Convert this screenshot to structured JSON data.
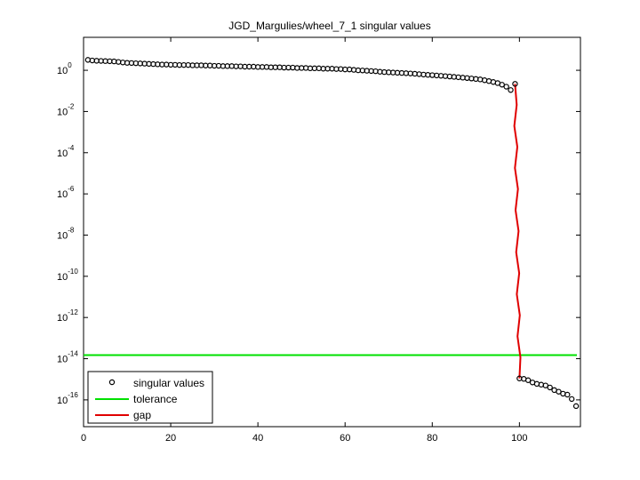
{
  "chart_data": {
    "type": "scatter",
    "title": "JGD_Margulies/wheel_7_1 singular values",
    "xlabel": "",
    "ylabel": "",
    "xlim": [
      0,
      114
    ],
    "ylim_log10": [
      -17.3,
      1.6
    ],
    "yscale": "log",
    "grid": false,
    "legend_position": "bottom-left",
    "x_ticks": [
      0,
      20,
      40,
      60,
      80,
      100
    ],
    "y_ticks": [
      {
        "base": "10",
        "exp": "0",
        "value": 1
      },
      {
        "base": "10",
        "exp": "-2",
        "value": 0.01
      },
      {
        "base": "10",
        "exp": "-4",
        "value": 0.0001
      },
      {
        "base": "10",
        "exp": "-6",
        "value": 1e-06
      },
      {
        "base": "10",
        "exp": "-8",
        "value": 1e-08
      },
      {
        "base": "10",
        "exp": "-10",
        "value": 1e-10
      },
      {
        "base": "10",
        "exp": "-12",
        "value": 1e-12
      },
      {
        "base": "10",
        "exp": "-14",
        "value": 1e-14
      },
      {
        "base": "10",
        "exp": "-16",
        "value": 1e-16
      }
    ],
    "series": [
      {
        "name": "singular values",
        "marker": "circle",
        "color": "#000000",
        "x": [
          1,
          2,
          3,
          4,
          5,
          6,
          7,
          8,
          9,
          10,
          11,
          12,
          13,
          14,
          15,
          16,
          17,
          18,
          19,
          20,
          21,
          22,
          23,
          24,
          25,
          26,
          27,
          28,
          29,
          30,
          31,
          32,
          33,
          34,
          35,
          36,
          37,
          38,
          39,
          40,
          41,
          42,
          43,
          44,
          45,
          46,
          47,
          48,
          49,
          50,
          51,
          52,
          53,
          54,
          55,
          56,
          57,
          58,
          59,
          60,
          61,
          62,
          63,
          64,
          65,
          66,
          67,
          68,
          69,
          70,
          71,
          72,
          73,
          74,
          75,
          76,
          77,
          78,
          79,
          80,
          81,
          82,
          83,
          84,
          85,
          86,
          87,
          88,
          89,
          90,
          91,
          92,
          93,
          94,
          95,
          96,
          97,
          98,
          99,
          100,
          101,
          102,
          103,
          104,
          105,
          106,
          107,
          108,
          109,
          110,
          111,
          112,
          113
        ],
        "y": [
          3.2,
          3.0,
          2.9,
          2.85,
          2.8,
          2.75,
          2.7,
          2.55,
          2.4,
          2.3,
          2.25,
          2.2,
          2.15,
          2.1,
          2.05,
          2.0,
          1.95,
          1.9,
          1.9,
          1.85,
          1.85,
          1.8,
          1.8,
          1.8,
          1.75,
          1.75,
          1.75,
          1.7,
          1.7,
          1.65,
          1.65,
          1.6,
          1.6,
          1.6,
          1.55,
          1.55,
          1.5,
          1.5,
          1.5,
          1.45,
          1.45,
          1.45,
          1.4,
          1.4,
          1.4,
          1.35,
          1.35,
          1.35,
          1.3,
          1.3,
          1.3,
          1.25,
          1.25,
          1.25,
          1.2,
          1.2,
          1.2,
          1.15,
          1.15,
          1.1,
          1.1,
          1.05,
          1.0,
          0.98,
          0.95,
          0.92,
          0.9,
          0.85,
          0.82,
          0.8,
          0.78,
          0.76,
          0.74,
          0.72,
          0.7,
          0.68,
          0.65,
          0.62,
          0.6,
          0.58,
          0.56,
          0.54,
          0.52,
          0.5,
          0.48,
          0.46,
          0.44,
          0.42,
          0.4,
          0.38,
          0.36,
          0.33,
          0.3,
          0.27,
          0.24,
          0.2,
          0.16,
          0.11,
          0.22,
          1.1e-15,
          1.05e-15,
          9e-16,
          7e-16,
          6e-16,
          5.5e-16,
          5e-16,
          4e-16,
          3e-16,
          2.5e-16,
          2e-16,
          1.8e-16,
          1.1e-16,
          5e-17
        ]
      },
      {
        "name": "tolerance",
        "color": "#00e000",
        "value": 1.5e-14
      },
      {
        "name": "gap",
        "color": "#e00000",
        "x": [
          99,
          100
        ],
        "y": [
          0.22,
          1.1e-15
        ]
      }
    ]
  }
}
